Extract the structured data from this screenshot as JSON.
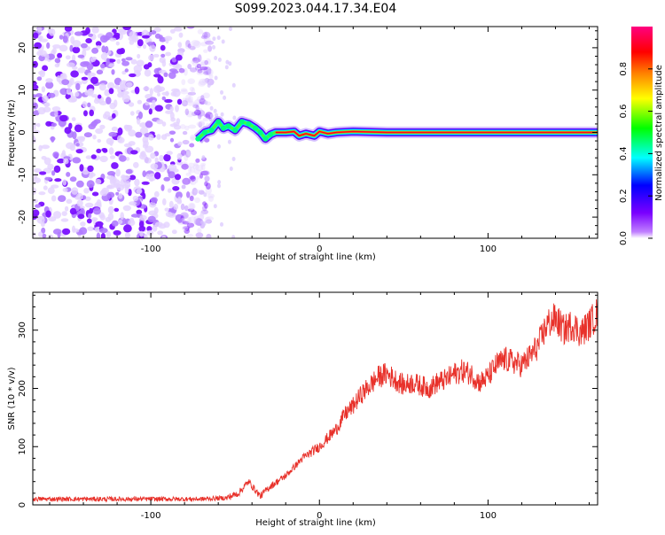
{
  "title": "S099.2023.044.17.34.E04",
  "chart_data": [
    {
      "type": "heatmap",
      "xlabel": "Height of straight line (km)",
      "ylabel": "Frequency (Hz)",
      "xlim": [
        -170,
        165
      ],
      "ylim": [
        -25,
        25
      ],
      "xticks": [
        -100,
        0,
        100
      ],
      "yticks": [
        -20,
        -10,
        0,
        10,
        20
      ],
      "colorbar": {
        "label": "Normalized spectral amplitude",
        "range": [
          0,
          1
        ],
        "ticks": [
          "0.0",
          "0.2",
          "0.4",
          "0.6",
          "0.8"
        ],
        "colors": [
          "#ffffff",
          "#7a00ff",
          "#0000ff",
          "#00ffff",
          "#00ff00",
          "#ffff00",
          "#ff8000",
          "#ff0000",
          "#ff0080"
        ]
      },
      "noise_region_x": [
        -170,
        -72
      ],
      "ridge": [
        {
          "x": -72,
          "f": -1.5
        },
        {
          "x": -68,
          "f": 0.0
        },
        {
          "x": -64,
          "f": 0.5
        },
        {
          "x": -60,
          "f": 2.5
        },
        {
          "x": -57,
          "f": 1.0
        },
        {
          "x": -54,
          "f": 1.5
        },
        {
          "x": -50,
          "f": 0.5
        },
        {
          "x": -46,
          "f": 2.5
        },
        {
          "x": -42,
          "f": 2.0
        },
        {
          "x": -38,
          "f": 1.0
        },
        {
          "x": -35,
          "f": 0.0
        },
        {
          "x": -32,
          "f": -1.5
        },
        {
          "x": -29,
          "f": -0.5
        },
        {
          "x": -26,
          "f": 0.0
        },
        {
          "x": -20,
          "f": 0.0
        },
        {
          "x": -15,
          "f": 0.2
        },
        {
          "x": -12,
          "f": -0.8
        },
        {
          "x": -8,
          "f": -0.3
        },
        {
          "x": -3,
          "f": -0.8
        },
        {
          "x": 0,
          "f": 0.2
        },
        {
          "x": 5,
          "f": -0.3
        },
        {
          "x": 10,
          "f": 0.0
        },
        {
          "x": 20,
          "f": 0.2
        },
        {
          "x": 40,
          "f": 0.0
        },
        {
          "x": 80,
          "f": 0.0
        },
        {
          "x": 120,
          "f": 0.0
        },
        {
          "x": 165,
          "f": 0.0
        }
      ]
    },
    {
      "type": "line",
      "xlabel": "Height of straight line (km)",
      "ylabel": "SNR (10 * v/v)",
      "xlim": [
        -170,
        165
      ],
      "ylim": [
        0,
        365
      ],
      "xticks": [
        -100,
        0,
        100
      ],
      "yticks": [
        0,
        100,
        200,
        300
      ],
      "color": "#e8312a",
      "series": [
        {
          "x": [
            -170,
            -150,
            -130,
            -110,
            -90,
            -70,
            -55,
            -48,
            -42,
            -38,
            -35,
            -30,
            -25,
            -20,
            -15,
            -10,
            -5,
            0,
            5,
            10,
            15,
            20,
            25,
            30,
            35,
            40,
            45,
            50,
            55,
            60,
            65,
            70,
            75,
            80,
            85,
            90,
            95,
            100,
            105,
            110,
            115,
            120,
            125,
            130,
            135,
            140,
            145,
            150,
            155,
            160,
            165
          ],
          "y": [
            10,
            10,
            10,
            10,
            10,
            10,
            12,
            20,
            40,
            25,
            15,
            30,
            40,
            50,
            65,
            80,
            90,
            100,
            115,
            130,
            155,
            170,
            190,
            205,
            220,
            225,
            215,
            205,
            210,
            205,
            200,
            210,
            215,
            225,
            230,
            225,
            210,
            220,
            240,
            250,
            245,
            240,
            255,
            275,
            310,
            320,
            300,
            310,
            295,
            310,
            330
          ]
        }
      ]
    }
  ]
}
